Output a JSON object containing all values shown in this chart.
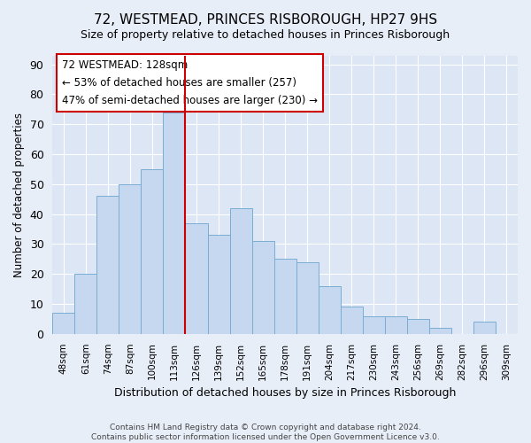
{
  "title": "72, WESTMEAD, PRINCES RISBOROUGH, HP27 9HS",
  "subtitle": "Size of property relative to detached houses in Princes Risborough",
  "xlabel": "Distribution of detached houses by size in Princes Risborough",
  "ylabel": "Number of detached properties",
  "categories": [
    "48sqm",
    "61sqm",
    "74sqm",
    "87sqm",
    "100sqm",
    "113sqm",
    "126sqm",
    "139sqm",
    "152sqm",
    "165sqm",
    "178sqm",
    "191sqm",
    "204sqm",
    "217sqm",
    "230sqm",
    "243sqm",
    "256sqm",
    "269sqm",
    "282sqm",
    "296sqm",
    "309sqm"
  ],
  "bar_values": [
    7,
    20,
    46,
    50,
    55,
    74,
    37,
    33,
    42,
    31,
    25,
    24,
    16,
    9,
    6,
    6,
    5,
    2,
    0,
    4,
    0
  ],
  "bar_color": "#c5d8f0",
  "bar_edge_color": "#7aadd4",
  "background_color": "#e8eef8",
  "plot_bg_color": "#dce6f5",
  "grid_color": "#ffffff",
  "annotation_box_color": "#ffffff",
  "annotation_box_edge": "#cc0000",
  "vline_color": "#cc0000",
  "annotation_text_line1": "72 WESTMEAD: 128sqm",
  "annotation_text_line2": "← 53% of detached houses are smaller (257)",
  "annotation_text_line3": "47% of semi-detached houses are larger (230) →",
  "footer1": "Contains HM Land Registry data © Crown copyright and database right 2024.",
  "footer2": "Contains public sector information licensed under the Open Government Licence v3.0.",
  "ylim": [
    0,
    93
  ],
  "yticks": [
    0,
    10,
    20,
    30,
    40,
    50,
    60,
    70,
    80,
    90
  ],
  "title_fontsize": 11,
  "subtitle_fontsize": 9
}
